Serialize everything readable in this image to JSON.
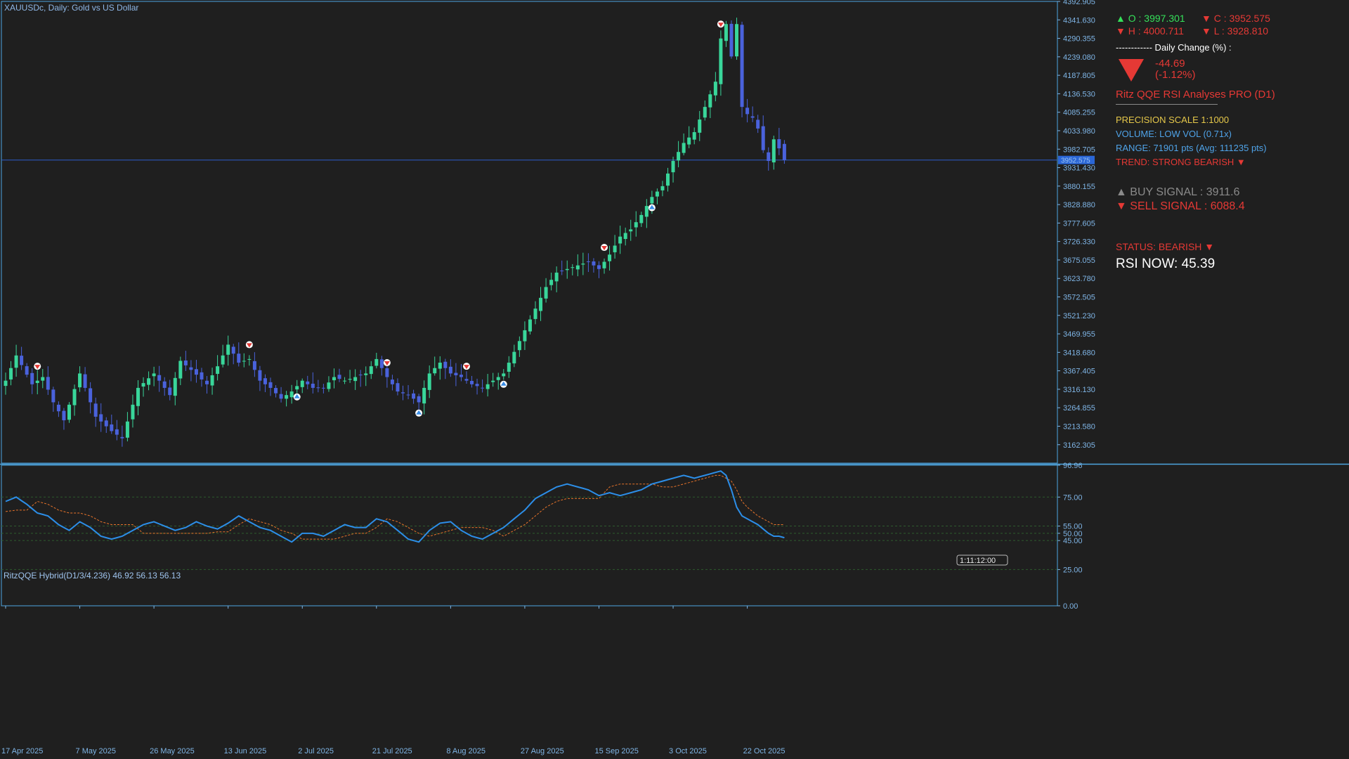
{
  "header": {
    "symbol": "XAUUSDc, Daily:",
    "description": "Gold vs US Dollar"
  },
  "colors": {
    "background": "#1f1f1f",
    "bull_candle": "#39d69a",
    "bear_candle": "#4a62dc",
    "axis_border": "#4ea6e0",
    "axis_text": "#7fb5e6",
    "bid_line": "#2f5ecc",
    "qqe_fast": "#2c8ee8",
    "qqe_slow": "#e8742a",
    "level_line": "#2e5c2e",
    "panel_green": "#35e05a",
    "panel_red": "#e53935",
    "panel_yellow": "#e6c84a",
    "panel_blue": "#4fa3e8",
    "panel_gray": "#8a8a8a",
    "panel_white": "#ffffff"
  },
  "info_panel": {
    "open_label": "▲ O : 3997.301",
    "close_label": "▼ C : 3952.575",
    "high_label": "▼ H : 4000.711",
    "low_label": "▼ L : 3928.810",
    "daily_change_title": "------------ Daily Change (%) :",
    "change_icon": "down-triangle",
    "change_points": "-44.69",
    "change_percent": "(-1.12%)",
    "indicator_name": "Ritz QQE RSI Analyses PRO (D1)",
    "precision": "PRECISION SCALE 1:1000",
    "volume": "VOLUME: LOW VOL (0.71x)",
    "range": "RANGE: 71901 pts (Avg: 111235 pts)",
    "trend": "TREND: STRONG BEARISH ▼",
    "buy_signal": "▲ BUY SIGNAL : 3911.6",
    "sell_signal": "▼ SELL SIGNAL : 6088.4",
    "status": "STATUS: BEARISH ▼",
    "rsi_now": "RSI NOW: 45.39"
  },
  "countdown": "1:11:12:00",
  "indicator": {
    "title": "RitzQQE Hybrid(D1/3/4.236) 46.92 56.13 56.13",
    "ticks": [
      "96.96",
      "75.00",
      "55.00",
      "50.00",
      "45.00",
      "25.00",
      "0.00"
    ],
    "tick_values": [
      96.96,
      75,
      55,
      50,
      45,
      25,
      0
    ],
    "ylim": [
      0,
      96.96
    ],
    "levels": [
      75,
      55,
      50,
      45,
      25
    ]
  },
  "chart_data": [
    {
      "type": "candlestick",
      "title": "XAUUSDc, Daily: Gold vs US Dollar",
      "ylim": [
        3111.1,
        4392.905
      ],
      "y_ticks": [
        "4392.905",
        "4341.630",
        "4290.355",
        "4239.080",
        "4187.805",
        "4136.530",
        "4085.255",
        "4033.980",
        "3982.705",
        "3931.430",
        "3880.155",
        "3828.880",
        "3777.605",
        "3726.330",
        "3675.055",
        "3623.780",
        "3572.505",
        "3521.230",
        "3469.955",
        "3418.680",
        "3367.405",
        "3316.130",
        "3264.855",
        "3213.580",
        "3162.305"
      ],
      "y_tick_values": [
        4392.905,
        4341.63,
        4290.355,
        4239.08,
        4187.805,
        4136.53,
        4085.255,
        4033.98,
        3982.705,
        3931.43,
        3880.155,
        3828.88,
        3777.605,
        3726.33,
        3675.055,
        3623.78,
        3572.505,
        3521.23,
        3469.955,
        3418.68,
        3367.405,
        3316.13,
        3264.855,
        3213.58,
        3162.305
      ],
      "x_labels": [
        "17 Apr 2025",
        "7 May 2025",
        "26 May 2025",
        "13 Jun 2025",
        "2 Jul 2025",
        "21 Jul 2025",
        "8 Aug 2025",
        "27 Aug 2025",
        "15 Sep 2025",
        "3 Oct 2025",
        "22 Oct 2025"
      ],
      "x_label_bars": [
        0,
        14,
        28,
        42,
        56,
        70,
        84,
        98,
        112,
        126,
        140
      ],
      "current_price": "3952.575",
      "current_price_value": 3952.575,
      "close_anchors": [
        [
          0,
          3340
        ],
        [
          2,
          3410
        ],
        [
          5,
          3330
        ],
        [
          7,
          3350
        ],
        [
          9,
          3280
        ],
        [
          11,
          3230
        ],
        [
          14,
          3360
        ],
        [
          17,
          3240
        ],
        [
          20,
          3200
        ],
        [
          22,
          3180
        ],
        [
          25,
          3320
        ],
        [
          28,
          3360
        ],
        [
          31,
          3300
        ],
        [
          33,
          3395
        ],
        [
          35,
          3370
        ],
        [
          38,
          3330
        ],
        [
          40,
          3380
        ],
        [
          42,
          3440
        ],
        [
          44,
          3390
        ],
        [
          46,
          3400
        ],
        [
          48,
          3340
        ],
        [
          50,
          3320
        ],
        [
          52,
          3290
        ],
        [
          54,
          3310
        ],
        [
          56,
          3340
        ],
        [
          58,
          3320
        ],
        [
          60,
          3320
        ],
        [
          62,
          3350
        ],
        [
          64,
          3340
        ],
        [
          66,
          3350
        ],
        [
          68,
          3360
        ],
        [
          70,
          3400
        ],
        [
          72,
          3350
        ],
        [
          74,
          3310
        ],
        [
          76,
          3300
        ],
        [
          78,
          3280
        ],
        [
          80,
          3360
        ],
        [
          82,
          3390
        ],
        [
          84,
          3360
        ],
        [
          86,
          3350
        ],
        [
          88,
          3330
        ],
        [
          90,
          3320
        ],
        [
          92,
          3340
        ],
        [
          94,
          3360
        ],
        [
          96,
          3420
        ],
        [
          98,
          3480
        ],
        [
          100,
          3540
        ],
        [
          102,
          3600
        ],
        [
          104,
          3640
        ],
        [
          106,
          3650
        ],
        [
          108,
          3660
        ],
        [
          110,
          3670
        ],
        [
          112,
          3650
        ],
        [
          114,
          3690
        ],
        [
          116,
          3740
        ],
        [
          118,
          3760
        ],
        [
          120,
          3800
        ],
        [
          122,
          3850
        ],
        [
          124,
          3880
        ],
        [
          126,
          3950
        ],
        [
          128,
          4000
        ],
        [
          130,
          4030
        ],
        [
          132,
          4100
        ],
        [
          134,
          4170
        ],
        [
          135,
          4290
        ],
        [
          136,
          4330
        ],
        [
          137,
          4240
        ],
        [
          138,
          4330
        ],
        [
          139,
          4100
        ],
        [
          140,
          4080
        ],
        [
          141,
          4070
        ],
        [
          142,
          4040
        ],
        [
          143,
          3980
        ],
        [
          144,
          3950
        ],
        [
          145,
          4010
        ],
        [
          146,
          3985
        ],
        [
          147,
          3952.575
        ]
      ],
      "signals": [
        {
          "bar": 6,
          "type": "sell"
        },
        {
          "bar": 46,
          "type": "sell"
        },
        {
          "bar": 55,
          "type": "buy"
        },
        {
          "bar": 72,
          "type": "sell"
        },
        {
          "bar": 78,
          "type": "buy"
        },
        {
          "bar": 87,
          "type": "sell"
        },
        {
          "bar": 94,
          "type": "buy"
        },
        {
          "bar": 113,
          "type": "sell"
        },
        {
          "bar": 122,
          "type": "buy"
        },
        {
          "bar": 135,
          "type": "sell"
        }
      ]
    },
    {
      "type": "line",
      "title": "RitzQQE Hybrid(D1/3/4.236) 46.92 56.13 56.13",
      "ylim": [
        0,
        96.96
      ],
      "series": [
        {
          "name": "fast",
          "anchors": [
            [
              0,
              72
            ],
            [
              2,
              75
            ],
            [
              4,
              70
            ],
            [
              6,
              64
            ],
            [
              8,
              62
            ],
            [
              10,
              56
            ],
            [
              12,
              52
            ],
            [
              14,
              58
            ],
            [
              16,
              54
            ],
            [
              18,
              48
            ],
            [
              20,
              46
            ],
            [
              22,
              48
            ],
            [
              24,
              52
            ],
            [
              26,
              56
            ],
            [
              28,
              58
            ],
            [
              30,
              55
            ],
            [
              32,
              52
            ],
            [
              34,
              54
            ],
            [
              36,
              58
            ],
            [
              38,
              55
            ],
            [
              40,
              53
            ],
            [
              42,
              57
            ],
            [
              44,
              62
            ],
            [
              46,
              58
            ],
            [
              48,
              54
            ],
            [
              50,
              52
            ],
            [
              52,
              48
            ],
            [
              54,
              44
            ],
            [
              56,
              50
            ],
            [
              58,
              50
            ],
            [
              60,
              48
            ],
            [
              62,
              52
            ],
            [
              64,
              56
            ],
            [
              66,
              54
            ],
            [
              68,
              54
            ],
            [
              70,
              60
            ],
            [
              72,
              58
            ],
            [
              74,
              52
            ],
            [
              76,
              46
            ],
            [
              78,
              44
            ],
            [
              80,
              52
            ],
            [
              82,
              57
            ],
            [
              84,
              58
            ],
            [
              86,
              52
            ],
            [
              88,
              48
            ],
            [
              90,
              46
            ],
            [
              92,
              50
            ],
            [
              94,
              54
            ],
            [
              96,
              60
            ],
            [
              98,
              66
            ],
            [
              100,
              74
            ],
            [
              102,
              78
            ],
            [
              104,
              82
            ],
            [
              106,
              84
            ],
            [
              108,
              82
            ],
            [
              110,
              80
            ],
            [
              112,
              76
            ],
            [
              114,
              78
            ],
            [
              116,
              76
            ],
            [
              118,
              78
            ],
            [
              120,
              80
            ],
            [
              122,
              84
            ],
            [
              124,
              86
            ],
            [
              126,
              88
            ],
            [
              128,
              90
            ],
            [
              130,
              88
            ],
            [
              132,
              90
            ],
            [
              134,
              92
            ],
            [
              135,
              93
            ],
            [
              136,
              90
            ],
            [
              137,
              80
            ],
            [
              138,
              68
            ],
            [
              139,
              62
            ],
            [
              140,
              60
            ],
            [
              142,
              56
            ],
            [
              144,
              50
            ],
            [
              145,
              48
            ],
            [
              146,
              48
            ],
            [
              147,
              47
            ]
          ]
        },
        {
          "name": "slow",
          "anchors": [
            [
              0,
              65
            ],
            [
              2,
              66
            ],
            [
              4,
              66
            ],
            [
              6,
              72
            ],
            [
              8,
              70
            ],
            [
              10,
              66
            ],
            [
              12,
              64
            ],
            [
              14,
              64
            ],
            [
              16,
              62
            ],
            [
              18,
              58
            ],
            [
              20,
              56
            ],
            [
              22,
              56
            ],
            [
              24,
              56
            ],
            [
              26,
              50
            ],
            [
              28,
              50
            ],
            [
              30,
              50
            ],
            [
              32,
              50
            ],
            [
              34,
              50
            ],
            [
              36,
              50
            ],
            [
              38,
              50
            ],
            [
              40,
              51
            ],
            [
              42,
              51
            ],
            [
              44,
              56
            ],
            [
              46,
              60
            ],
            [
              48,
              58
            ],
            [
              50,
              56
            ],
            [
              52,
              52
            ],
            [
              54,
              50
            ],
            [
              56,
              46
            ],
            [
              58,
              46
            ],
            [
              60,
              46
            ],
            [
              62,
              46
            ],
            [
              64,
              48
            ],
            [
              66,
              50
            ],
            [
              68,
              50
            ],
            [
              70,
              54
            ],
            [
              72,
              60
            ],
            [
              74,
              58
            ],
            [
              76,
              54
            ],
            [
              78,
              50
            ],
            [
              80,
              48
            ],
            [
              82,
              50
            ],
            [
              84,
              52
            ],
            [
              86,
              54
            ],
            [
              88,
              54
            ],
            [
              90,
              54
            ],
            [
              92,
              52
            ],
            [
              94,
              48
            ],
            [
              96,
              52
            ],
            [
              98,
              56
            ],
            [
              100,
              62
            ],
            [
              102,
              68
            ],
            [
              104,
              72
            ],
            [
              106,
              74
            ],
            [
              108,
              74
            ],
            [
              110,
              74
            ],
            [
              112,
              74
            ],
            [
              114,
              82
            ],
            [
              116,
              84
            ],
            [
              118,
              84
            ],
            [
              120,
              84
            ],
            [
              122,
              84
            ],
            [
              124,
              82
            ],
            [
              126,
              82
            ],
            [
              128,
              84
            ],
            [
              130,
              86
            ],
            [
              132,
              88
            ],
            [
              134,
              90
            ],
            [
              135,
              90
            ],
            [
              136,
              88
            ],
            [
              137,
              86
            ],
            [
              138,
              80
            ],
            [
              139,
              72
            ],
            [
              140,
              68
            ],
            [
              142,
              62
            ],
            [
              144,
              58
            ],
            [
              145,
              56
            ],
            [
              146,
              56
            ],
            [
              147,
              56
            ]
          ]
        }
      ]
    }
  ]
}
